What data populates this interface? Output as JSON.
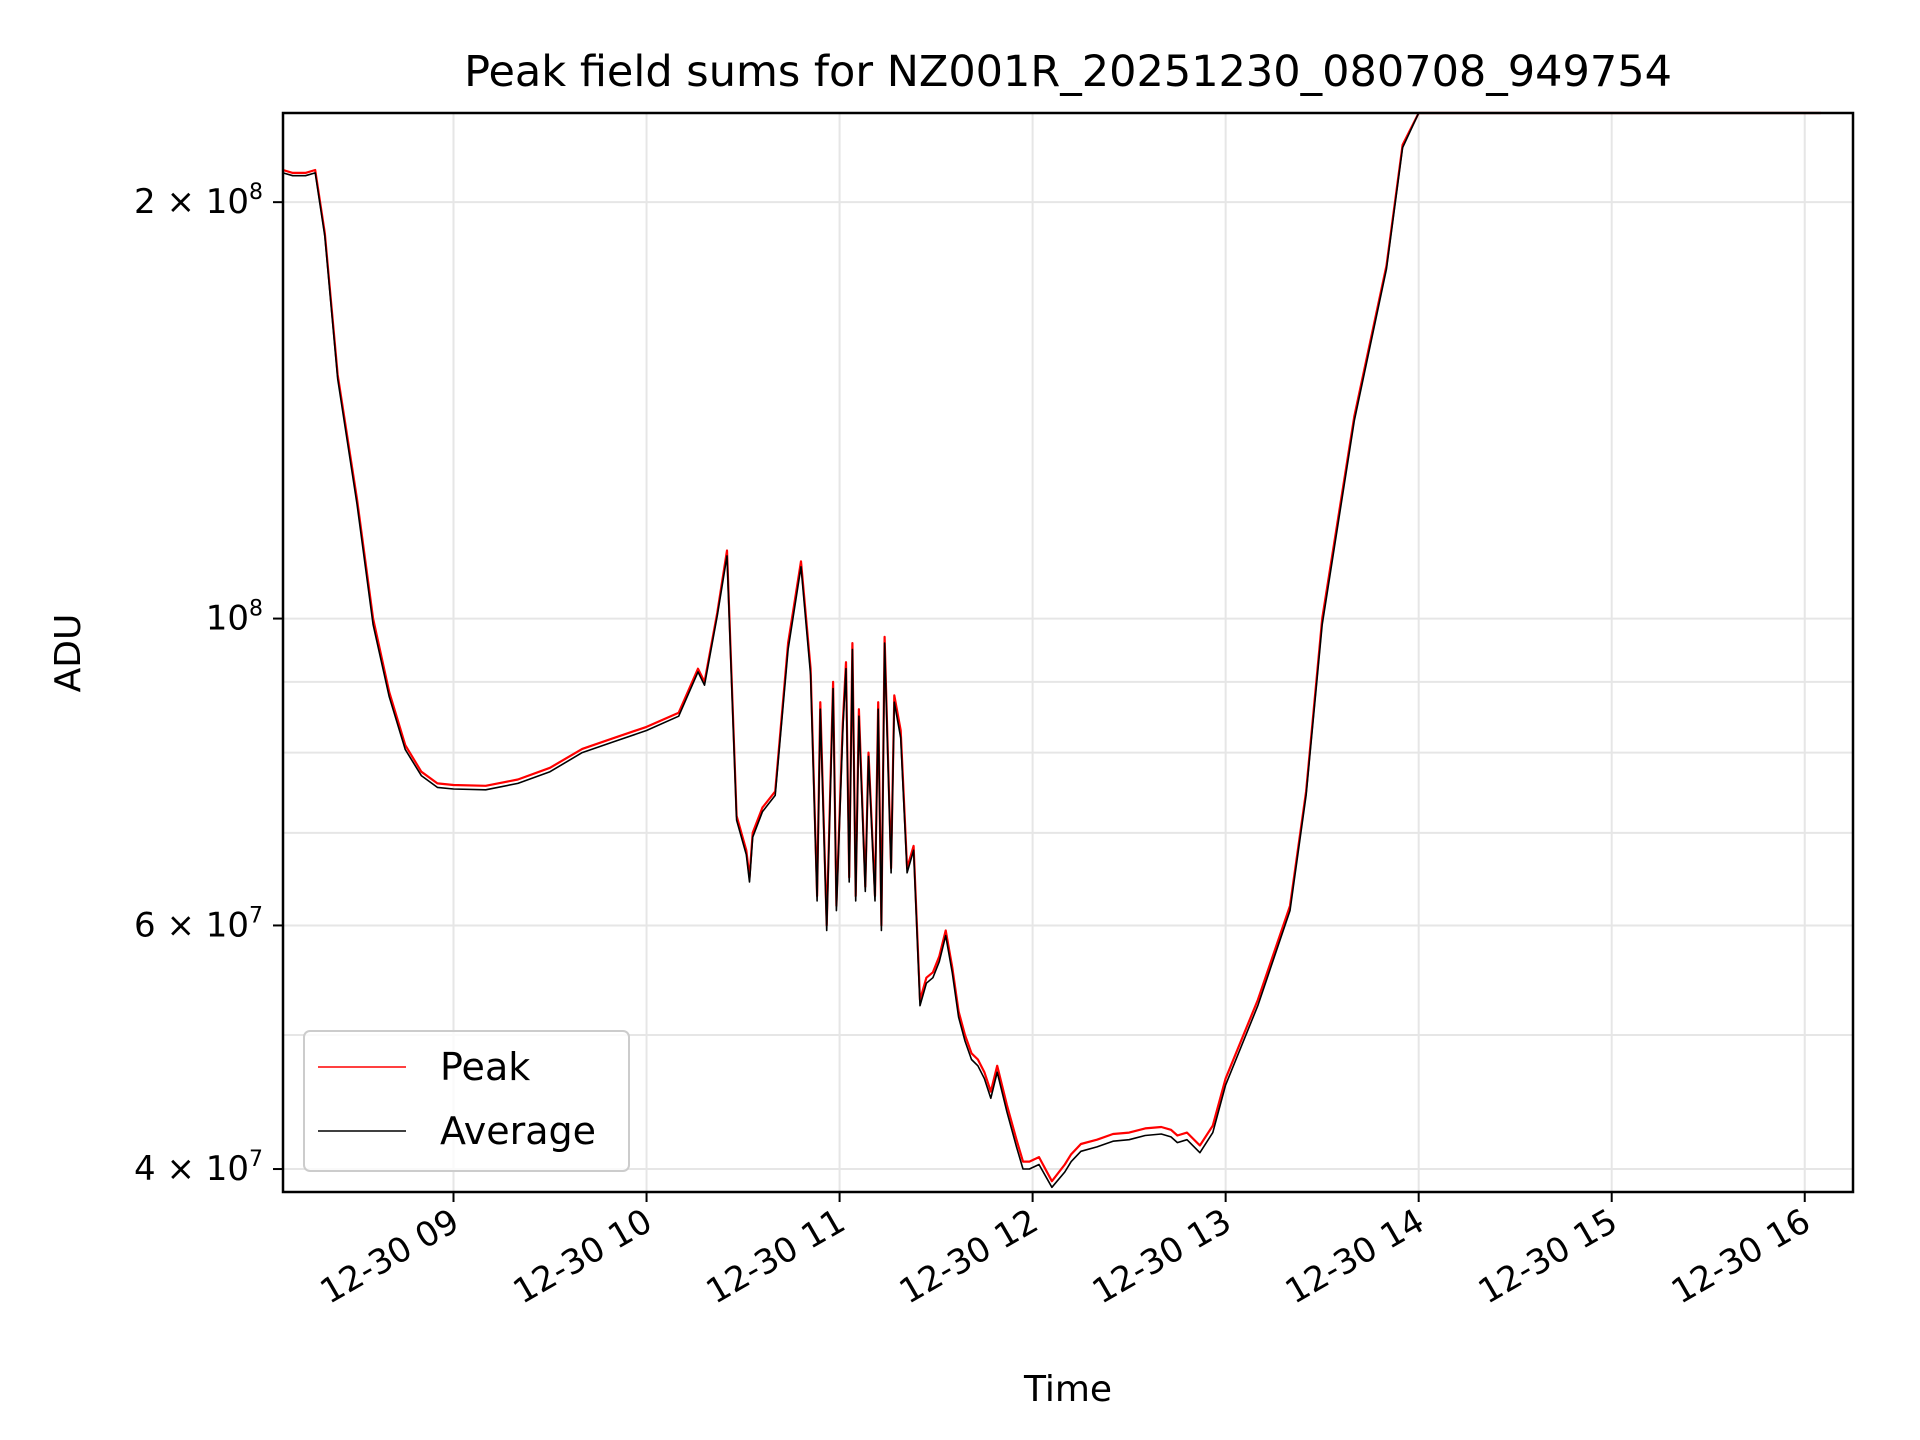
{
  "chart_data": {
    "type": "line",
    "title": "Peak field sums for NZ001R_20251230_080708_949754",
    "xlabel": "Time",
    "ylabel": "ADU",
    "y_scale": "log",
    "ylim": [
      38500000,
      232000000
    ],
    "xlim": [
      "2025-12-30 08:07",
      "2025-12-30 16:15"
    ],
    "grid": true,
    "legend": "lower-left",
    "x_ticks": [
      "2025-12-30 09:00",
      "2025-12-30 10:00",
      "2025-12-30 11:00",
      "2025-12-30 12:00",
      "2025-12-30 13:00",
      "2025-12-30 14:00",
      "2025-12-30 15:00",
      "2025-12-30 16:00"
    ],
    "x_tick_labels": [
      "12-30 09",
      "12-30 10",
      "12-30 11",
      "12-30 12",
      "12-30 13",
      "12-30 14",
      "12-30 15",
      "12-30 16"
    ],
    "y_ticks": [
      {
        "value": 40000000,
        "mantissa": "4",
        "exp": "7",
        "major": false
      },
      {
        "value": 60000000,
        "mantissa": "6",
        "exp": "7",
        "major": false
      },
      {
        "value": 100000000,
        "mantissa": "",
        "exp": "8",
        "major": true
      },
      {
        "value": 200000000,
        "mantissa": "2",
        "exp": "8",
        "major": false
      }
    ],
    "y_minor_gridlines": [
      50000000,
      70000000,
      80000000,
      90000000,
      300000000
    ],
    "series": [
      {
        "name": "Peak",
        "color": "#ff0000",
        "x": [
          "2025-12-30 08:07",
          "2025-12-30 08:10",
          "2025-12-30 08:14",
          "2025-12-30 08:17",
          "2025-12-30 08:20",
          "2025-12-30 08:24",
          "2025-12-30 08:30",
          "2025-12-30 08:35",
          "2025-12-30 08:40",
          "2025-12-30 08:45",
          "2025-12-30 08:50",
          "2025-12-30 08:55",
          "2025-12-30 09:00",
          "2025-12-30 09:10",
          "2025-12-30 09:20",
          "2025-12-30 09:30",
          "2025-12-30 09:40",
          "2025-12-30 09:50",
          "2025-12-30 10:00",
          "2025-12-30 10:10",
          "2025-12-30 10:16",
          "2025-12-30 10:18",
          "2025-12-30 10:22",
          "2025-12-30 10:25",
          "2025-12-30 10:28",
          "2025-12-30 10:31",
          "2025-12-30 10:32",
          "2025-12-30 10:33",
          "2025-12-30 10:36",
          "2025-12-30 10:38",
          "2025-12-30 10:40",
          "2025-12-30 10:44",
          "2025-12-30 10:48",
          "2025-12-30 10:51",
          "2025-12-30 10:53",
          "2025-12-30 10:54",
          "2025-12-30 10:56",
          "2025-12-30 10:58",
          "2025-12-30 10:59",
          "2025-12-30 11:01",
          "2025-12-30 11:02",
          "2025-12-30 11:03",
          "2025-12-30 11:04",
          "2025-12-30 11:05",
          "2025-12-30 11:06",
          "2025-12-30 11:08",
          "2025-12-30 11:09",
          "2025-12-30 11:11",
          "2025-12-30 11:12",
          "2025-12-30 11:13",
          "2025-12-30 11:14",
          "2025-12-30 11:16",
          "2025-12-30 11:17",
          "2025-12-30 11:19",
          "2025-12-30 11:21",
          "2025-12-30 11:23",
          "2025-12-30 11:25",
          "2025-12-30 11:27",
          "2025-12-30 11:29",
          "2025-12-30 11:31",
          "2025-12-30 11:33",
          "2025-12-30 11:35",
          "2025-12-30 11:37",
          "2025-12-30 11:39",
          "2025-12-30 11:41",
          "2025-12-30 11:43",
          "2025-12-30 11:45",
          "2025-12-30 11:47",
          "2025-12-30 11:49",
          "2025-12-30 11:52",
          "2025-12-30 11:55",
          "2025-12-30 11:57",
          "2025-12-30 11:59",
          "2025-12-30 12:02",
          "2025-12-30 12:06",
          "2025-12-30 12:10",
          "2025-12-30 12:12",
          "2025-12-30 12:15",
          "2025-12-30 12:20",
          "2025-12-30 12:25",
          "2025-12-30 12:30",
          "2025-12-30 12:35",
          "2025-12-30 12:40",
          "2025-12-30 12:43",
          "2025-12-30 12:45",
          "2025-12-30 12:48",
          "2025-12-30 12:52",
          "2025-12-30 12:56",
          "2025-12-30 13:00",
          "2025-12-30 13:10",
          "2025-12-30 13:20",
          "2025-12-30 13:25",
          "2025-12-30 13:30",
          "2025-12-30 13:40",
          "2025-12-30 13:50",
          "2025-12-30 13:55",
          "2025-12-30 14:00",
          "2025-12-30 14:20",
          "2025-12-30 14:40",
          "2025-12-30 15:00",
          "2025-12-30 15:05",
          "2025-12-30 15:08",
          "2025-12-30 15:10",
          "2025-12-30 15:15",
          "2025-12-30 15:20",
          "2025-12-30 15:25",
          "2025-12-30 15:30",
          "2025-12-30 15:35",
          "2025-12-30 15:40",
          "2025-12-30 15:45",
          "2025-12-30 15:50",
          "2025-12-30 15:55",
          "2025-12-30 15:59",
          "2025-12-30 16:02",
          "2025-12-30 16:05"
        ],
        "values": [
          211000000,
          210000000,
          210000000,
          211000000,
          190000000,
          150000000,
          122000000,
          100000000,
          88500000,
          81000000,
          77500000,
          76000000,
          75800000,
          75700000,
          76500000,
          78000000,
          80500000,
          82000000,
          83500000,
          85500000,
          92000000,
          90000000,
          101000000,
          112000000,
          72000000,
          68000000,
          65000000,
          70000000,
          73000000,
          74000000,
          75000000,
          96000000,
          110000000,
          92000000,
          63000000,
          87000000,
          60000000,
          90000000,
          62000000,
          84000000,
          93000000,
          65000000,
          96000000,
          63000000,
          86000000,
          64000000,
          80000000,
          63000000,
          87000000,
          60000000,
          97000000,
          66000000,
          88000000,
          83000000,
          66000000,
          68500000,
          53000000,
          55000000,
          55500000,
          57000000,
          59500000,
          56000000,
          52000000,
          50000000,
          48500000,
          48000000,
          47000000,
          45500000,
          47500000,
          44500000,
          42000000,
          40500000,
          40500000,
          40800000,
          39200000,
          40300000,
          41000000,
          41700000,
          42000000,
          42400000,
          42500000,
          42800000,
          42900000,
          42700000,
          42300000,
          42500000,
          41600000,
          43000000,
          46500000,
          53000000,
          62000000,
          75000000,
          100000000,
          140000000,
          180000000,
          220000000,
          232000000,
          232000000,
          232000000,
          232000000,
          232000000,
          232000000,
          232000000,
          232000000,
          232000000,
          232000000,
          232000000,
          232000000,
          232000000,
          232000000,
          232000000,
          232000000,
          232000000,
          232000000,
          232000000
        ]
      },
      {
        "name": "Average",
        "color": "#000000",
        "x": [
          "2025-12-30 08:07",
          "2025-12-30 08:10",
          "2025-12-30 08:14",
          "2025-12-30 08:17",
          "2025-12-30 08:20",
          "2025-12-30 08:24",
          "2025-12-30 08:30",
          "2025-12-30 08:35",
          "2025-12-30 08:40",
          "2025-12-30 08:45",
          "2025-12-30 08:50",
          "2025-12-30 08:55",
          "2025-12-30 09:00",
          "2025-12-30 09:10",
          "2025-12-30 09:20",
          "2025-12-30 09:30",
          "2025-12-30 09:40",
          "2025-12-30 09:50",
          "2025-12-30 10:00",
          "2025-12-30 10:10",
          "2025-12-30 10:16",
          "2025-12-30 10:18",
          "2025-12-30 10:22",
          "2025-12-30 10:25",
          "2025-12-30 10:28",
          "2025-12-30 10:31",
          "2025-12-30 10:32",
          "2025-12-30 10:33",
          "2025-12-30 10:36",
          "2025-12-30 10:38",
          "2025-12-30 10:40",
          "2025-12-30 10:44",
          "2025-12-30 10:48",
          "2025-12-30 10:51",
          "2025-12-30 10:53",
          "2025-12-30 10:54",
          "2025-12-30 10:56",
          "2025-12-30 10:58",
          "2025-12-30 10:59",
          "2025-12-30 11:01",
          "2025-12-30 11:02",
          "2025-12-30 11:03",
          "2025-12-30 11:04",
          "2025-12-30 11:05",
          "2025-12-30 11:06",
          "2025-12-30 11:08",
          "2025-12-30 11:09",
          "2025-12-30 11:11",
          "2025-12-30 11:12",
          "2025-12-30 11:13",
          "2025-12-30 11:14",
          "2025-12-30 11:16",
          "2025-12-30 11:17",
          "2025-12-30 11:19",
          "2025-12-30 11:21",
          "2025-12-30 11:23",
          "2025-12-30 11:25",
          "2025-12-30 11:27",
          "2025-12-30 11:29",
          "2025-12-30 11:31",
          "2025-12-30 11:33",
          "2025-12-30 11:35",
          "2025-12-30 11:37",
          "2025-12-30 11:39",
          "2025-12-30 11:41",
          "2025-12-30 11:43",
          "2025-12-30 11:45",
          "2025-12-30 11:47",
          "2025-12-30 11:49",
          "2025-12-30 11:52",
          "2025-12-30 11:55",
          "2025-12-30 11:57",
          "2025-12-30 11:59",
          "2025-12-30 12:02",
          "2025-12-30 12:06",
          "2025-12-30 12:10",
          "2025-12-30 12:12",
          "2025-12-30 12:15",
          "2025-12-30 12:20",
          "2025-12-30 12:25",
          "2025-12-30 12:30",
          "2025-12-30 12:35",
          "2025-12-30 12:40",
          "2025-12-30 12:43",
          "2025-12-30 12:45",
          "2025-12-30 12:48",
          "2025-12-30 12:52",
          "2025-12-30 12:56",
          "2025-12-30 13:00",
          "2025-12-30 13:10",
          "2025-12-30 13:20",
          "2025-12-30 13:25",
          "2025-12-30 13:30",
          "2025-12-30 13:40",
          "2025-12-30 13:50",
          "2025-12-30 13:55",
          "2025-12-30 14:00",
          "2025-12-30 14:20",
          "2025-12-30 14:40",
          "2025-12-30 15:00",
          "2025-12-30 15:05",
          "2025-12-30 15:08",
          "2025-12-30 15:10",
          "2025-12-30 15:15",
          "2025-12-30 15:20",
          "2025-12-30 15:25",
          "2025-12-30 15:30",
          "2025-12-30 15:35",
          "2025-12-30 15:40",
          "2025-12-30 15:45",
          "2025-12-30 15:50",
          "2025-12-30 15:55",
          "2025-12-30 15:59",
          "2025-12-30 16:02",
          "2025-12-30 16:05"
        ],
        "values": [
          210000000,
          209000000,
          209000000,
          210000000,
          189000000,
          149000000,
          121000000,
          99000000,
          87800000,
          80400000,
          77000000,
          75500000,
          75300000,
          75200000,
          76000000,
          77500000,
          80000000,
          81500000,
          83000000,
          85000000,
          91500000,
          89500000,
          100500000,
          111000000,
          71500000,
          67500000,
          64500000,
          69500000,
          72500000,
          73500000,
          74500000,
          95000000,
          109000000,
          91000000,
          62500000,
          86000000,
          59500000,
          89000000,
          61500000,
          83000000,
          92000000,
          64500000,
          95000000,
          62500000,
          85000000,
          63500000,
          79500000,
          62500000,
          86000000,
          59500000,
          96000000,
          65500000,
          87000000,
          82000000,
          65500000,
          68000000,
          52500000,
          54500000,
          55000000,
          56500000,
          59000000,
          55500000,
          51500000,
          49500000,
          48000000,
          47500000,
          46500000,
          45000000,
          47000000,
          44000000,
          41500000,
          40000000,
          40000000,
          40300000,
          38800000,
          39800000,
          40500000,
          41200000,
          41500000,
          41900000,
          42000000,
          42300000,
          42400000,
          42200000,
          41800000,
          42000000,
          41100000,
          42500000,
          46000000,
          52500000,
          61500000,
          74500000,
          99000000,
          139000000,
          179000000,
          219000000,
          232000000,
          232000000,
          232000000,
          232000000,
          232000000,
          232000000,
          232000000,
          232000000,
          232000000,
          232000000,
          232000000,
          232000000,
          232000000,
          232000000,
          232000000,
          232000000,
          232000000,
          232000000,
          232000000
        ]
      }
    ]
  }
}
